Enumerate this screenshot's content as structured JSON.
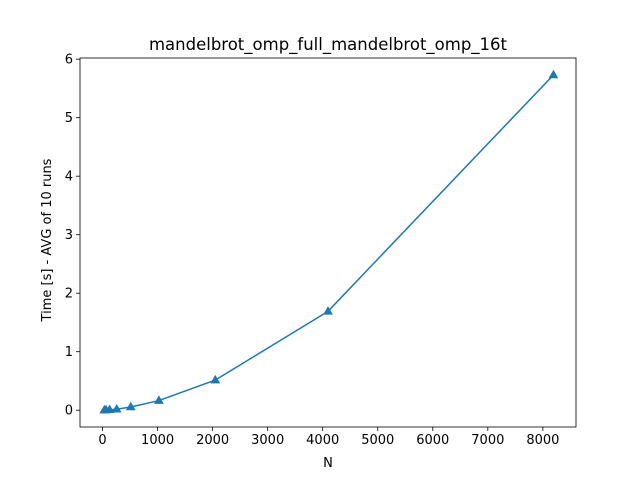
{
  "chart_data": {
    "type": "line",
    "title": "mandelbrot_omp_full_mandelbrot_omp_16t",
    "xlabel": "N",
    "ylabel": "Time [s] - AVG of 10 runs",
    "xlim": [
      -410,
      8602
    ],
    "ylim": [
      -0.287,
      6.02
    ],
    "xticks": [
      0,
      1000,
      2000,
      3000,
      4000,
      5000,
      6000,
      7000,
      8000
    ],
    "yticks": [
      0,
      1,
      2,
      3,
      4,
      5,
      6
    ],
    "grid": false,
    "legend": "none",
    "marker": "triangle-up",
    "color": "#1f77b4",
    "series": [
      {
        "x": [
          32,
          64,
          128,
          256,
          512,
          1024,
          2048,
          4096,
          8192
        ],
        "values": [
          0.002,
          0.004,
          0.008,
          0.017,
          0.055,
          0.165,
          0.515,
          1.69,
          5.73
        ]
      }
    ]
  }
}
